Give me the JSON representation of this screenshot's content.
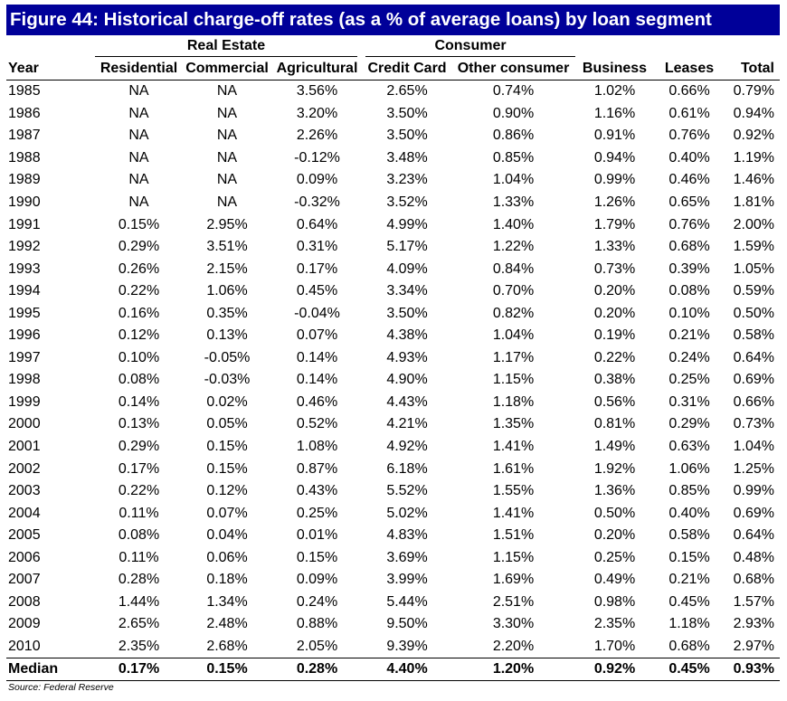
{
  "title": "Figure 44: Historical charge-off rates (as a % of average loans) by loan segment",
  "groups": {
    "real_estate": "Real Estate",
    "consumer": "Consumer"
  },
  "columns": [
    "Year",
    "Residential",
    "Commercial",
    "Agricultural",
    "Credit Card",
    "Other consumer",
    "Business",
    "Leases",
    "Total"
  ],
  "rows": [
    [
      "1985",
      "NA",
      "NA",
      "3.56%",
      "2.65%",
      "0.74%",
      "1.02%",
      "0.66%",
      "0.79%"
    ],
    [
      "1986",
      "NA",
      "NA",
      "3.20%",
      "3.50%",
      "0.90%",
      "1.16%",
      "0.61%",
      "0.94%"
    ],
    [
      "1987",
      "NA",
      "NA",
      "2.26%",
      "3.50%",
      "0.86%",
      "0.91%",
      "0.76%",
      "0.92%"
    ],
    [
      "1988",
      "NA",
      "NA",
      "-0.12%",
      "3.48%",
      "0.85%",
      "0.94%",
      "0.40%",
      "1.19%"
    ],
    [
      "1989",
      "NA",
      "NA",
      "0.09%",
      "3.23%",
      "1.04%",
      "0.99%",
      "0.46%",
      "1.46%"
    ],
    [
      "1990",
      "NA",
      "NA",
      "-0.32%",
      "3.52%",
      "1.33%",
      "1.26%",
      "0.65%",
      "1.81%"
    ],
    [
      "1991",
      "0.15%",
      "2.95%",
      "0.64%",
      "4.99%",
      "1.40%",
      "1.79%",
      "0.76%",
      "2.00%"
    ],
    [
      "1992",
      "0.29%",
      "3.51%",
      "0.31%",
      "5.17%",
      "1.22%",
      "1.33%",
      "0.68%",
      "1.59%"
    ],
    [
      "1993",
      "0.26%",
      "2.15%",
      "0.17%",
      "4.09%",
      "0.84%",
      "0.73%",
      "0.39%",
      "1.05%"
    ],
    [
      "1994",
      "0.22%",
      "1.06%",
      "0.45%",
      "3.34%",
      "0.70%",
      "0.20%",
      "0.08%",
      "0.59%"
    ],
    [
      "1995",
      "0.16%",
      "0.35%",
      "-0.04%",
      "3.50%",
      "0.82%",
      "0.20%",
      "0.10%",
      "0.50%"
    ],
    [
      "1996",
      "0.12%",
      "0.13%",
      "0.07%",
      "4.38%",
      "1.04%",
      "0.19%",
      "0.21%",
      "0.58%"
    ],
    [
      "1997",
      "0.10%",
      "-0.05%",
      "0.14%",
      "4.93%",
      "1.17%",
      "0.22%",
      "0.24%",
      "0.64%"
    ],
    [
      "1998",
      "0.08%",
      "-0.03%",
      "0.14%",
      "4.90%",
      "1.15%",
      "0.38%",
      "0.25%",
      "0.69%"
    ],
    [
      "1999",
      "0.14%",
      "0.02%",
      "0.46%",
      "4.43%",
      "1.18%",
      "0.56%",
      "0.31%",
      "0.66%"
    ],
    [
      "2000",
      "0.13%",
      "0.05%",
      "0.52%",
      "4.21%",
      "1.35%",
      "0.81%",
      "0.29%",
      "0.73%"
    ],
    [
      "2001",
      "0.29%",
      "0.15%",
      "1.08%",
      "4.92%",
      "1.41%",
      "1.49%",
      "0.63%",
      "1.04%"
    ],
    [
      "2002",
      "0.17%",
      "0.15%",
      "0.87%",
      "6.18%",
      "1.61%",
      "1.92%",
      "1.06%",
      "1.25%"
    ],
    [
      "2003",
      "0.22%",
      "0.12%",
      "0.43%",
      "5.52%",
      "1.55%",
      "1.36%",
      "0.85%",
      "0.99%"
    ],
    [
      "2004",
      "0.11%",
      "0.07%",
      "0.25%",
      "5.02%",
      "1.41%",
      "0.50%",
      "0.40%",
      "0.69%"
    ],
    [
      "2005",
      "0.08%",
      "0.04%",
      "0.01%",
      "4.83%",
      "1.51%",
      "0.20%",
      "0.58%",
      "0.64%"
    ],
    [
      "2006",
      "0.11%",
      "0.06%",
      "0.15%",
      "3.69%",
      "1.15%",
      "0.25%",
      "0.15%",
      "0.48%"
    ],
    [
      "2007",
      "0.28%",
      "0.18%",
      "0.09%",
      "3.99%",
      "1.69%",
      "0.49%",
      "0.21%",
      "0.68%"
    ],
    [
      "2008",
      "1.44%",
      "1.34%",
      "0.24%",
      "5.44%",
      "2.51%",
      "0.98%",
      "0.45%",
      "1.57%"
    ],
    [
      "2009",
      "2.65%",
      "2.48%",
      "0.88%",
      "9.50%",
      "3.30%",
      "2.35%",
      "1.18%",
      "2.93%"
    ],
    [
      "2010",
      "2.35%",
      "2.68%",
      "2.05%",
      "9.39%",
      "2.20%",
      "1.70%",
      "0.68%",
      "2.97%"
    ]
  ],
  "median": [
    "Median",
    "0.17%",
    "0.15%",
    "0.28%",
    "4.40%",
    "1.20%",
    "0.92%",
    "0.45%",
    "0.93%"
  ],
  "source": "Source: Federal Reserve",
  "colors": {
    "title_bg": "#000099",
    "title_text": "#ffffff"
  }
}
